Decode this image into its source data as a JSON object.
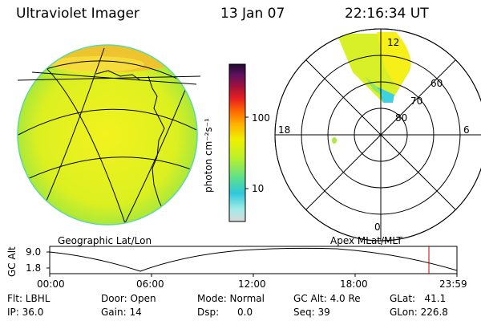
{
  "header": {
    "title": "Ultraviolet Imager",
    "date": "13 Jan 07",
    "time": "22:16:34 UT"
  },
  "colorbar": {
    "unit_label": "photon cm⁻²s⁻¹",
    "ticks": [
      "100",
      "10"
    ],
    "colors": [
      "#d8d8d8",
      "#6fe0d0",
      "#2ec8dc",
      "#5ee08a",
      "#b8f02e",
      "#f0f000",
      "#ffb000",
      "#ff6a00",
      "#e82020",
      "#a0103c",
      "#601060",
      "#200830"
    ]
  },
  "left_panel": {
    "caption": "Geographic Lat/Lon"
  },
  "right_panel": {
    "caption": "Apex MLat/MLT",
    "mlt_labels": {
      "top": "12",
      "left": "18",
      "right": "6",
      "bottom": "0"
    },
    "mlat_labels": [
      "60",
      "70",
      "80"
    ]
  },
  "altitude_plot": {
    "ylabel": "GC Alt",
    "yticks": [
      "9.0",
      "1.8"
    ],
    "xticks": [
      "00:00",
      "06:00",
      "12:00",
      "18:00",
      "23:59"
    ],
    "marker_color": "#c00000"
  },
  "info": {
    "flt": "Flt: LBHL",
    "ip": "IP: 36.0",
    "door": "Door: Open",
    "gain": "Gain: 14",
    "mode": "Mode: Normal",
    "dsp": "Dsp:      0.0",
    "gc_alt": "GC Alt: 4.0 Re",
    "seq": "Seq: 39",
    "glat": "GLat:   41.1",
    "glon": "GLon: 226.8"
  }
}
